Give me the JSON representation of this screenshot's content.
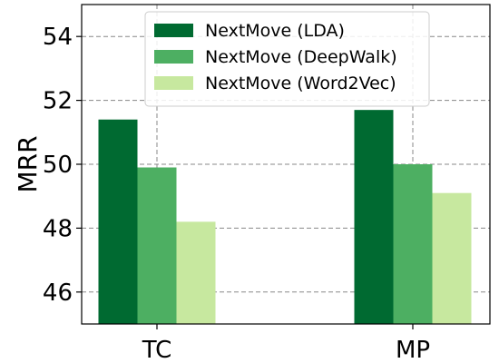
{
  "chart_data": {
    "type": "bar",
    "categories": [
      "TC",
      "MP"
    ],
    "series": [
      {
        "name": "NextMove (LDA)",
        "values": [
          51.4,
          51.7
        ],
        "color": "#006a31"
      },
      {
        "name": "NextMove (DeepWalk)",
        "values": [
          49.9,
          50.0
        ],
        "color": "#4daf62"
      },
      {
        "name": "NextMove (Word2Vec)",
        "values": [
          48.2,
          49.1
        ],
        "color": "#c7e89f"
      }
    ],
    "title": "",
    "xlabel": "",
    "ylabel": "MRR",
    "ylim": [
      45,
      55
    ],
    "yticks": [
      "46",
      "48",
      "50",
      "52",
      "54"
    ],
    "grid": true,
    "legend_position": "top-center"
  }
}
